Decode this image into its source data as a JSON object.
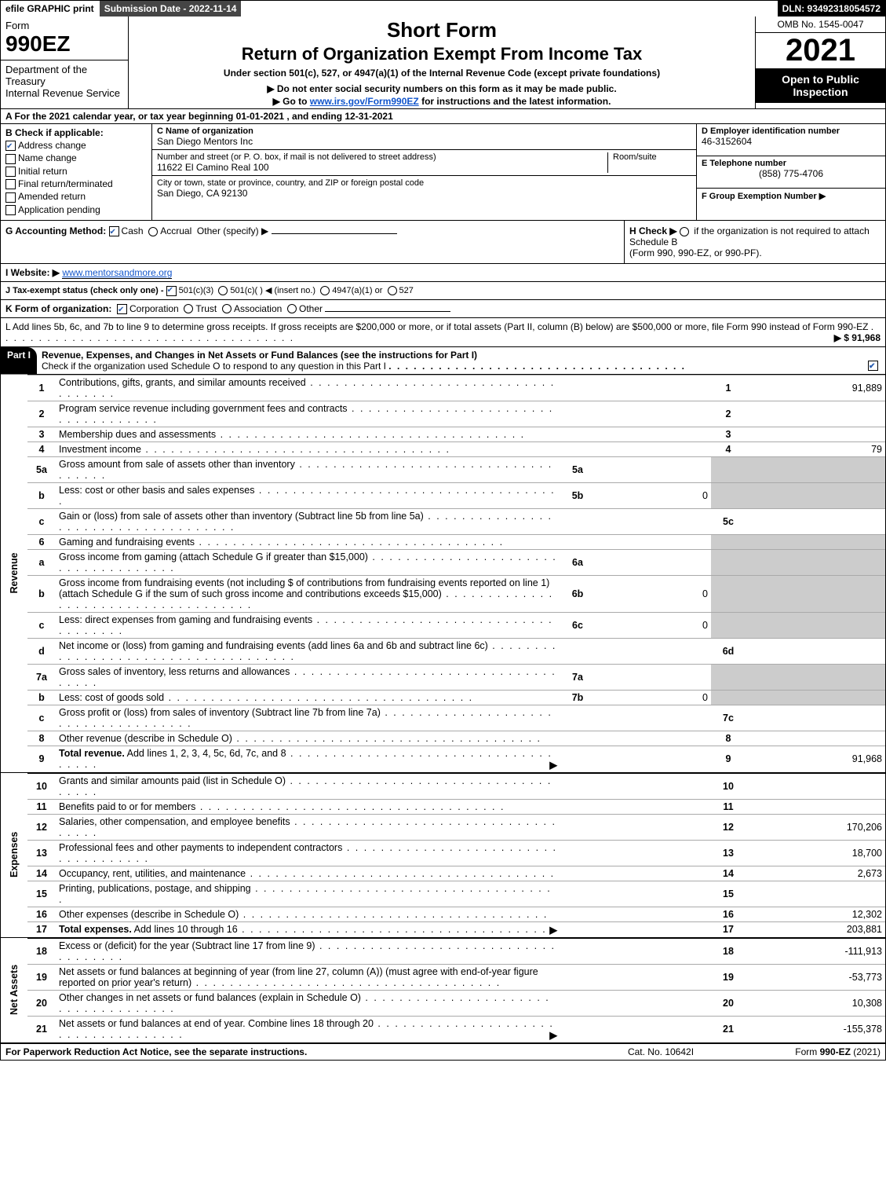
{
  "top": {
    "efile": "efile GRAPHIC print",
    "submission": "Submission Date - 2022-11-14",
    "dln": "DLN: 93492318054572"
  },
  "header": {
    "form_label": "Form",
    "form_code": "990EZ",
    "dept1": "Department of the Treasury",
    "dept2": "Internal Revenue Service",
    "short": "Short Form",
    "return_title": "Return of Organization Exempt From Income Tax",
    "under": "Under section 501(c), 527, or 4947(a)(1) of the Internal Revenue Code (except private foundations)",
    "do_not": "▶ Do not enter social security numbers on this form as it may be made public.",
    "goto_pre": "▶ Go to ",
    "goto_link": "www.irs.gov/Form990EZ",
    "goto_post": " for instructions and the latest information.",
    "omb": "OMB No. 1545-0047",
    "year": "2021",
    "open": "Open to Public Inspection"
  },
  "section_a": "A  For the 2021 calendar year, or tax year beginning 01-01-2021 , and ending 12-31-2021",
  "b": {
    "label": "B  Check if applicable:",
    "items": [
      {
        "label": "Address change",
        "checked": true
      },
      {
        "label": "Name change",
        "checked": false
      },
      {
        "label": "Initial return",
        "checked": false
      },
      {
        "label": "Final return/terminated",
        "checked": false
      },
      {
        "label": "Amended return",
        "checked": false
      },
      {
        "label": "Application pending",
        "checked": false
      }
    ]
  },
  "c": {
    "name_label": "C Name of organization",
    "name": "San Diego Mentors Inc",
    "addr_label": "Number and street (or P. O. box, if mail is not delivered to street address)",
    "addr": "11622 El Camino Real 100",
    "room_label": "Room/suite",
    "city_label": "City or town, state or province, country, and ZIP or foreign postal code",
    "city": "San Diego, CA  92130"
  },
  "d": {
    "label": "D Employer identification number",
    "value": "46-3152604"
  },
  "e": {
    "label": "E Telephone number",
    "value": "(858) 775-4706"
  },
  "f": {
    "label": "F Group Exemption Number   ▶",
    "value": ""
  },
  "g": {
    "label": "G Accounting Method:",
    "cash": "Cash",
    "accrual": "Accrual",
    "other": "Other (specify) ▶"
  },
  "h": {
    "text1": "H  Check ▶",
    "text2": "if the organization is not required to attach Schedule B",
    "text3": "(Form 990, 990-EZ, or 990-PF)."
  },
  "i": {
    "label": "I Website: ▶",
    "value": "www.mentorsandmore.org"
  },
  "j": {
    "label": "J Tax-exempt status (check only one) -",
    "opt1": "501(c)(3)",
    "opt2": "501(c)(  ) ◀ (insert no.)",
    "opt3": "4947(a)(1) or",
    "opt4": "527"
  },
  "k": {
    "label": "K Form of organization:",
    "corp": "Corporation",
    "trust": "Trust",
    "assoc": "Association",
    "other": "Other"
  },
  "l": {
    "text": "L Add lines 5b, 6c, and 7b to line 9 to determine gross receipts. If gross receipts are $200,000 or more, or if total assets (Part II, column (B) below) are $500,000 or more, file Form 990 instead of Form 990-EZ",
    "value": "▶ $ 91,968"
  },
  "part1": {
    "title": "Part I",
    "desc": "Revenue, Expenses, and Changes in Net Assets or Fund Balances (see the instructions for Part I)",
    "sub": "Check if the organization used Schedule O to respond to any question in this Part I"
  },
  "sections": {
    "revenue": "Revenue",
    "expenses": "Expenses",
    "netassets": "Net Assets"
  },
  "lines": [
    {
      "n": "1",
      "d": "Contributions, gifts, grants, and similar amounts received",
      "col": "1",
      "v": "91,889"
    },
    {
      "n": "2",
      "d": "Program service revenue including government fees and contracts",
      "col": "2",
      "v": ""
    },
    {
      "n": "3",
      "d": "Membership dues and assessments",
      "col": "3",
      "v": ""
    },
    {
      "n": "4",
      "d": "Investment income",
      "col": "4",
      "v": "79"
    },
    {
      "n": "5a",
      "d": "Gross amount from sale of assets other than inventory",
      "sub": "5a",
      "sv": "",
      "grey": true
    },
    {
      "n": "b",
      "d": "Less: cost or other basis and sales expenses",
      "sub": "5b",
      "sv": "0",
      "grey": true
    },
    {
      "n": "c",
      "d": "Gain or (loss) from sale of assets other than inventory (Subtract line 5b from line 5a)",
      "col": "5c",
      "v": ""
    },
    {
      "n": "6",
      "d": "Gaming and fundraising events",
      "grey": true
    },
    {
      "n": "a",
      "d": "Gross income from gaming (attach Schedule G if greater than $15,000)",
      "sub": "6a",
      "sv": "",
      "grey": true
    },
    {
      "n": "b",
      "d": "Gross income from fundraising events (not including $                    of contributions from fundraising events reported on line 1) (attach Schedule G if the sum of such gross income and contributions exceeds $15,000)",
      "sub": "6b",
      "sv": "0",
      "grey": true
    },
    {
      "n": "c",
      "d": "Less: direct expenses from gaming and fundraising events",
      "sub": "6c",
      "sv": "0",
      "grey": true
    },
    {
      "n": "d",
      "d": "Net income or (loss) from gaming and fundraising events (add lines 6a and 6b and subtract line 6c)",
      "col": "6d",
      "v": ""
    },
    {
      "n": "7a",
      "d": "Gross sales of inventory, less returns and allowances",
      "sub": "7a",
      "sv": "",
      "grey": true
    },
    {
      "n": "b",
      "d": "Less: cost of goods sold",
      "sub": "7b",
      "sv": "0",
      "grey": true
    },
    {
      "n": "c",
      "d": "Gross profit or (loss) from sales of inventory (Subtract line 7b from line 7a)",
      "col": "7c",
      "v": ""
    },
    {
      "n": "8",
      "d": "Other revenue (describe in Schedule O)",
      "col": "8",
      "v": ""
    },
    {
      "n": "9",
      "d": "Total revenue. Add lines 1, 2, 3, 4, 5c, 6d, 7c, and 8",
      "col": "9",
      "v": "91,968",
      "bold": true,
      "arrow": true
    }
  ],
  "exp_lines": [
    {
      "n": "10",
      "d": "Grants and similar amounts paid (list in Schedule O)",
      "col": "10",
      "v": ""
    },
    {
      "n": "11",
      "d": "Benefits paid to or for members",
      "col": "11",
      "v": ""
    },
    {
      "n": "12",
      "d": "Salaries, other compensation, and employee benefits",
      "col": "12",
      "v": "170,206"
    },
    {
      "n": "13",
      "d": "Professional fees and other payments to independent contractors",
      "col": "13",
      "v": "18,700"
    },
    {
      "n": "14",
      "d": "Occupancy, rent, utilities, and maintenance",
      "col": "14",
      "v": "2,673"
    },
    {
      "n": "15",
      "d": "Printing, publications, postage, and shipping",
      "col": "15",
      "v": ""
    },
    {
      "n": "16",
      "d": "Other expenses (describe in Schedule O)",
      "col": "16",
      "v": "12,302"
    },
    {
      "n": "17",
      "d": "Total expenses. Add lines 10 through 16",
      "col": "17",
      "v": "203,881",
      "bold": true,
      "arrow": true
    }
  ],
  "na_lines": [
    {
      "n": "18",
      "d": "Excess or (deficit) for the year (Subtract line 17 from line 9)",
      "col": "18",
      "v": "-111,913"
    },
    {
      "n": "19",
      "d": "Net assets or fund balances at beginning of year (from line 27, column (A)) (must agree with end-of-year figure reported on prior year's return)",
      "col": "19",
      "v": "-53,773"
    },
    {
      "n": "20",
      "d": "Other changes in net assets or fund balances (explain in Schedule O)",
      "col": "20",
      "v": "10,308"
    },
    {
      "n": "21",
      "d": "Net assets or fund balances at end of year. Combine lines 18 through 20",
      "col": "21",
      "v": "-155,378",
      "arrow": true
    }
  ],
  "footer": {
    "left": "For Paperwork Reduction Act Notice, see the separate instructions.",
    "mid": "Cat. No. 10642I",
    "right_pre": "Form ",
    "right_form": "990-EZ",
    "right_post": " (2021)"
  }
}
